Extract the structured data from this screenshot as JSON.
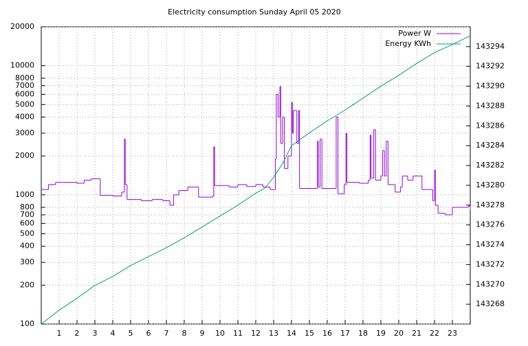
{
  "chart_data": {
    "type": "line",
    "title": "Electricity consumption Sunday April 05 2020",
    "xlim": [
      0,
      24
    ],
    "xticks": [
      1,
      2,
      3,
      4,
      5,
      6,
      7,
      8,
      9,
      10,
      11,
      12,
      13,
      14,
      15,
      16,
      17,
      18,
      19,
      20,
      21,
      22,
      23
    ],
    "ylim": [
      100,
      20000
    ],
    "log_y": true,
    "yticks": [
      100,
      200,
      300,
      400,
      500,
      600,
      700,
      800,
      1000,
      2000,
      3000,
      4000,
      5000,
      6000,
      7000,
      8000,
      10000,
      20000
    ],
    "y2lim": [
      143266,
      143296
    ],
    "y2ticks": [
      143268,
      143270,
      143272,
      143274,
      143276,
      143278,
      143280,
      143282,
      143284,
      143286,
      143288,
      143290,
      143292,
      143294
    ],
    "grid": true,
    "legend": "top-right",
    "series": [
      {
        "name": "Power W",
        "color": "#9400d3",
        "steps": true,
        "x": [
          0,
          0.4,
          0.8,
          2.0,
          2.4,
          2.8,
          3.3,
          4.0,
          4.5,
          4.65,
          4.7,
          4.8,
          5.6,
          6.2,
          6.8,
          7.2,
          7.4,
          7.7,
          8.2,
          8.8,
          9.6,
          9.65,
          9.7,
          10.5,
          11.0,
          11.5,
          12.0,
          12.4,
          12.8,
          13.1,
          13.15,
          13.25,
          13.35,
          13.4,
          13.5,
          13.6,
          13.8,
          14.0,
          14.05,
          14.1,
          14.3,
          14.4,
          14.45,
          15.4,
          15.45,
          15.5,
          15.6,
          15.7,
          16.4,
          16.5,
          16.6,
          16.95,
          17.05,
          17.1,
          17.8,
          18.3,
          18.4,
          18.45,
          18.6,
          18.7,
          19.0,
          19.1,
          19.2,
          19.3,
          19.4,
          19.8,
          20.1,
          20.2,
          20.5,
          20.8,
          21.3,
          21.9,
          22.0,
          22.05,
          22.2,
          22.6,
          23.0,
          23.9,
          24
        ],
        "values": [
          1100,
          1200,
          1250,
          1230,
          1300,
          1330,
          990,
          980,
          1050,
          2700,
          1200,
          920,
          900,
          920,
          900,
          830,
          1000,
          1080,
          1150,
          960,
          980,
          2350,
          1180,
          1150,
          1200,
          1160,
          1200,
          1150,
          1100,
          1900,
          6000,
          4000,
          6900,
          2500,
          4000,
          1600,
          2000,
          5200,
          3000,
          4500,
          2500,
          4500,
          1120,
          1120,
          2600,
          1150,
          2700,
          1120,
          1120,
          4000,
          1020,
          1200,
          3000,
          1250,
          1230,
          1300,
          2900,
          1350,
          3200,
          1300,
          1400,
          2200,
          1400,
          2600,
          1200,
          1050,
          1150,
          1400,
          1300,
          1400,
          1100,
          900,
          1550,
          830,
          720,
          700,
          800,
          820,
          760
        ]
      },
      {
        "name": "Energy KWh",
        "color": "#009e73",
        "axis": "y2",
        "x": [
          0,
          1,
          2,
          3,
          4,
          5,
          6,
          7,
          8,
          9,
          10,
          11,
          12,
          12.5,
          13,
          13.5,
          14,
          15,
          16,
          17,
          18,
          19,
          20,
          21,
          22,
          23,
          24
        ],
        "values": [
          143266.0,
          143267.4,
          143268.6,
          143269.9,
          143270.8,
          143271.9,
          143272.8,
          143273.7,
          143274.7,
          143275.8,
          143276.9,
          143278.0,
          143279.2,
          143279.7,
          143280.8,
          143282.2,
          143284.0,
          143285.3,
          143286.5,
          143287.6,
          143288.8,
          143290.0,
          143291.1,
          143292.3,
          143293.4,
          143294.2,
          143295.1
        ]
      }
    ]
  }
}
